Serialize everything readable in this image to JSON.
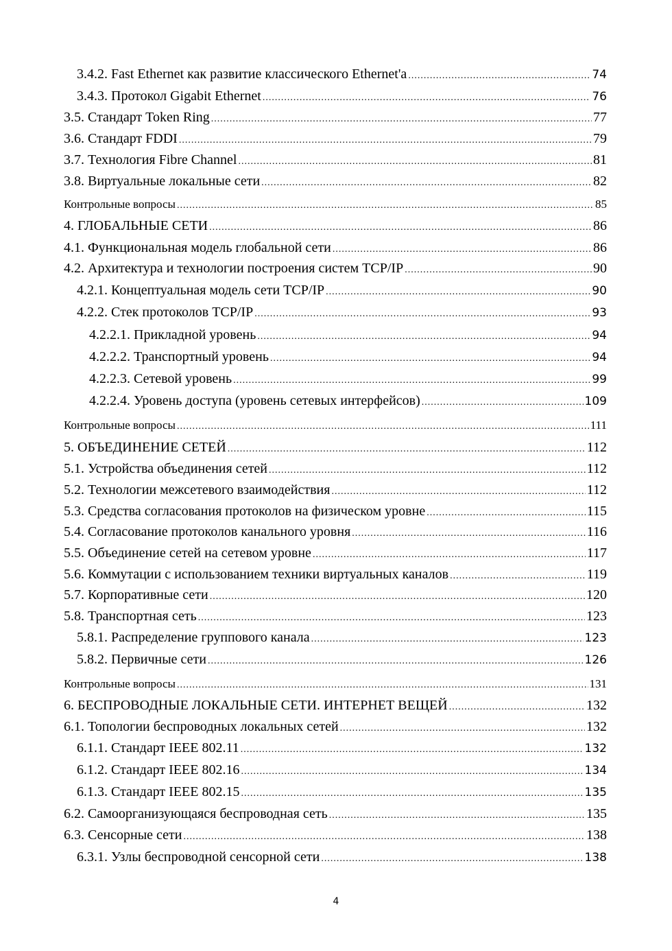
{
  "toc": [
    {
      "title": "3.4.2. Fast Ethernet как развитие классического Ethernet'a",
      "page": "74",
      "level": 1,
      "sans_page": true
    },
    {
      "title": "3.4.3. Протокол Gigabit Ethernet",
      "page": "76",
      "level": 1,
      "sans_page": true
    },
    {
      "title": "3.5. Стандарт Token Ring",
      "page": "77",
      "level": 0
    },
    {
      "title": "3.6. Стандарт FDDI",
      "page": "79",
      "level": 0
    },
    {
      "title": "3.7. Технология Fibre Channel",
      "page": "81",
      "level": 0
    },
    {
      "title": "3.8. Виртуальные локальные сети",
      "page": "82",
      "level": 0
    },
    {
      "title": "Контрольные вопросы",
      "page": "85",
      "level": 0,
      "small": true
    },
    {
      "title": "4. ГЛОБАЛЬНЫЕ СЕТИ",
      "page": "86",
      "level": 0
    },
    {
      "title": "4.1. Функциональная модель глобальной сети",
      "page": "86",
      "level": 0
    },
    {
      "title": "4.2. Архитектура и технологии построения систем TCP/IP",
      "page": "90",
      "level": 0
    },
    {
      "title": "4.2.1. Концептуальная модель сети TCP/IP",
      "page": "90",
      "level": 1,
      "sans_page": true
    },
    {
      "title": "4.2.2. Стек протоколов TCP/IP",
      "page": "93",
      "level": 1,
      "sans_page": true
    },
    {
      "title": "4.2.2.1. Прикладной уровень",
      "page": "94",
      "level": 2,
      "sans_page": true
    },
    {
      "title": "4.2.2.2. Транспортный уровень",
      "page": "94",
      "level": 2,
      "sans_page": true
    },
    {
      "title": "4.2.2.3. Сетевой уровень",
      "page": "99",
      "level": 2,
      "sans_page": true
    },
    {
      "title": "4.2.2.4. Уровень доступа (уровень сетевых интерфейсов)",
      "page": "109",
      "level": 2,
      "sans_page": true
    },
    {
      "title": "Контрольные вопросы",
      "page": "111",
      "level": 0,
      "small": true
    },
    {
      "title": "5. ОБЪЕДИНЕНИЕ СЕТЕЙ",
      "page": "112",
      "level": 0
    },
    {
      "title": "5.1. Устройства объединения сетей",
      "page": "112",
      "level": 0
    },
    {
      "title": "5.2. Технологии межсетевого взаимодействия",
      "page": "112",
      "level": 0
    },
    {
      "title": "5.3. Средства согласования протоколов на физическом уровне",
      "page": "115",
      "level": 0
    },
    {
      "title": "5.4. Согласование протоколов канального уровня",
      "page": "116",
      "level": 0
    },
    {
      "title": "5.5. Объединение сетей на сетевом уровне",
      "page": "117",
      "level": 0
    },
    {
      "title": "5.6. Коммутации с использованием техники виртуальных каналов",
      "page": "119",
      "level": 0
    },
    {
      "title": "5.7. Корпоративные сети",
      "page": "120",
      "level": 0
    },
    {
      "title": "5.8. Транспортная сеть",
      "page": "123",
      "level": 0
    },
    {
      "title": "5.8.1. Распределение группового канала",
      "page": "123",
      "level": 1,
      "sans_page": true
    },
    {
      "title": "5.8.2. Первичные сети",
      "page": "126",
      "level": 1,
      "sans_page": true
    },
    {
      "title": "Контрольные вопросы",
      "page": "131",
      "level": 0,
      "small": true
    },
    {
      "title": "6. БЕСПРОВОДНЫЕ ЛОКАЛЬНЫЕ СЕТИ. ИНТЕРНЕТ ВЕЩЕЙ",
      "page": "132",
      "level": 0
    },
    {
      "title": "6.1. Топологии беспроводных локальных сетей",
      "page": "132",
      "level": 0
    },
    {
      "title": "6.1.1. Стандарт IEEE 802.11",
      "page": "132",
      "level": 1,
      "sans_page": true
    },
    {
      "title": "6.1.2. Стандарт IEEE 802.16",
      "page": "134",
      "level": 1,
      "sans_page": true
    },
    {
      "title": "6.1.3. Стандарт IEEE 802.15",
      "page": "135",
      "level": 1,
      "sans_page": true
    },
    {
      "title": "6.2. Самоорганизующаяся беспроводная сеть",
      "page": "135",
      "level": 0
    },
    {
      "title": "6.3. Сенсорные сети",
      "page": "138",
      "level": 0
    },
    {
      "title": "6.3.1. Узлы беспроводной сенсорной сети",
      "page": "138",
      "level": 1,
      "sans_page": true
    }
  ],
  "page_number": "4"
}
